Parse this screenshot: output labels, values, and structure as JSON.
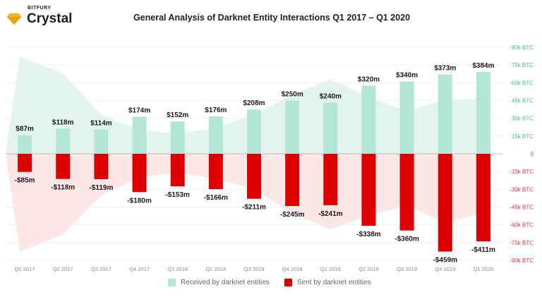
{
  "brand": {
    "small": "BITFURY",
    "name": "Crystal",
    "color": "#f6b31b"
  },
  "chart_data": {
    "type": "bar",
    "title": "General Analysis of Darknet Entity Interactions Q1 2017 – Q1 2020",
    "categories": [
      "Q1 2017",
      "Q2 2017",
      "Q3 2017",
      "Q4 2017",
      "Q1 2018",
      "Q2 2018",
      "Q3 2018",
      "Q4 2018",
      "Q1 2019",
      "Q2 2019",
      "Q3 2019",
      "Q4 2019",
      "Q1 2020"
    ],
    "series": [
      {
        "name": "Received by darknet entities",
        "values": [
          87,
          118,
          114,
          174,
          152,
          176,
          208,
          250,
          240,
          320,
          340,
          373,
          384
        ],
        "labels": [
          "$87m",
          "$118m",
          "$114m",
          "$174m",
          "$152m",
          "$176m",
          "$208m",
          "$250m",
          "$240m",
          "$320m",
          "$340m",
          "$373m",
          "$384m"
        ],
        "color": "#b3e6d6"
      },
      {
        "name": "Sent by darknet entities",
        "values": [
          -85,
          -118,
          -119,
          -180,
          -153,
          -166,
          -211,
          -245,
          -241,
          -338,
          -360,
          -459,
          -411
        ],
        "labels": [
          "-$85m",
          "-$118m",
          "-$119m",
          "-$180m",
          "-$153m",
          "-$166m",
          "-$211m",
          "-$245m",
          "-$241m",
          "-$338m",
          "-$360m",
          "-$459m",
          "-$411m"
        ],
        "color": "#dd0000"
      }
    ],
    "area_series": [
      {
        "values": [
          82000,
          68000,
          33000,
          20000,
          17000,
          22000,
          33000,
          50000,
          63000,
          48000,
          36000,
          46000,
          46000
        ],
        "color": "#e3f4ee"
      },
      {
        "values": [
          -83000,
          -68000,
          -35000,
          -20000,
          -16000,
          -21000,
          -30000,
          -50000,
          -64000,
          -52000,
          -44000,
          -58000,
          -50000
        ],
        "color": "#fde6e6"
      }
    ],
    "bar_scale_m": [
      -500,
      500
    ],
    "right_axis": {
      "ylim": [
        -90000,
        90000
      ],
      "ticks": [
        90000,
        75000,
        60000,
        45000,
        30000,
        15000,
        0,
        -15000,
        -30000,
        -45000,
        -60000,
        -75000,
        -90000
      ],
      "tick_labels": [
        "90k BTC",
        "75k BTC",
        "60k BTC",
        "45k BTC",
        "30k BTC",
        "15k BTC",
        "0",
        "-15k BTC",
        "-30k BTC",
        "-45k BTC",
        "-60k BTC",
        "-75k BTC",
        "-90k BTC"
      ],
      "positive_color": "#3dbf8f",
      "negative_color": "#e0303a"
    },
    "grid": true,
    "legend": "bottom"
  }
}
